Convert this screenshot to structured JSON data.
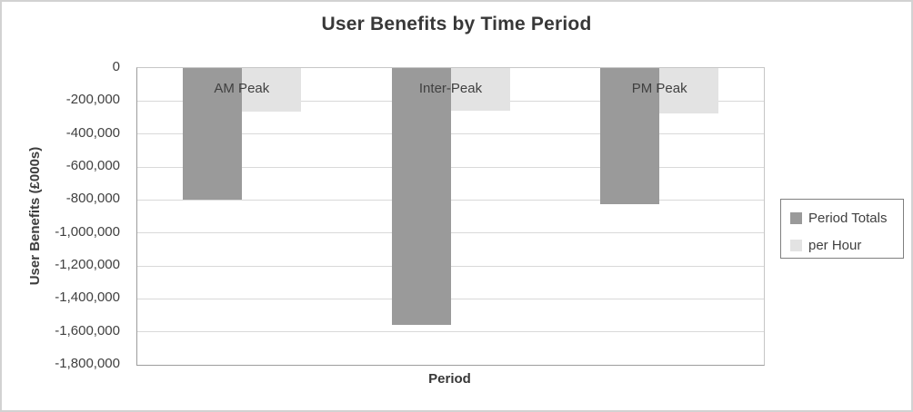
{
  "chart_data": {
    "type": "bar",
    "title": "User Benefits by Time Period",
    "xlabel": "Period",
    "ylabel": "User Benefits (£000s)",
    "categories": [
      "AM Peak",
      "Inter-Peak",
      "PM Peak"
    ],
    "series": [
      {
        "name": "Period Totals",
        "color": "#9a9a9a",
        "values": [
          -800000,
          -1555000,
          -825000
        ]
      },
      {
        "name": "per Hour",
        "color": "#e3e3e3",
        "values": [
          -265000,
          -260000,
          -275000
        ]
      }
    ],
    "ylim": [
      -1800000,
      0
    ],
    "ytick_step": 200000,
    "ytick_labels": [
      "0",
      "-200,000",
      "-400,000",
      "-600,000",
      "-800,000",
      "-1,000,000",
      "-1,200,000",
      "-1,400,000",
      "-1,600,000",
      "-1,800,000"
    ],
    "grid": true,
    "legend_position": "right",
    "background_color": "#ffffff"
  }
}
